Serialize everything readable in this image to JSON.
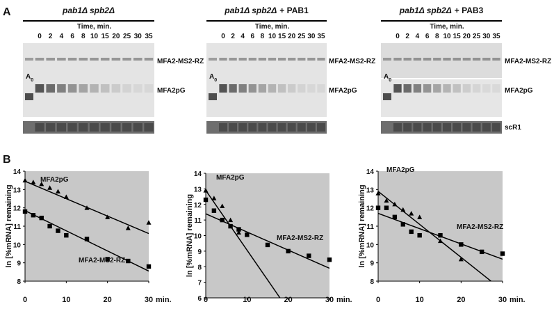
{
  "panel_a": {
    "label": "A",
    "gels": [
      {
        "strain": "pab1Δ spb2Δ",
        "time_label": "Time, min.",
        "times": [
          0,
          2,
          4,
          6,
          8,
          10,
          15,
          20,
          25,
          30,
          35
        ],
        "marker": "A",
        "marker_sub": "0",
        "bands": [
          "MFA2-MS2-RZ",
          "MFA2pG"
        ]
      },
      {
        "strain": "pab1Δ spb2Δ",
        "addition": "+ PAB1",
        "time_label": "Time, min.",
        "times": [
          0,
          2,
          4,
          6,
          8,
          10,
          15,
          20,
          25,
          30,
          35
        ],
        "marker": "A",
        "marker_sub": "0",
        "bands": [
          "MFA2-MS2-RZ",
          "MFA2pG"
        ]
      },
      {
        "strain": "pab1Δ spb2Δ",
        "addition": "+ PAB3",
        "time_label": "Time, min.",
        "times": [
          0,
          2,
          4,
          6,
          8,
          10,
          15,
          20,
          25,
          30,
          35
        ],
        "marker": "A",
        "marker_sub": "0",
        "bands": [
          "MFA2-MS2-RZ",
          "MFA2pG",
          "scR1"
        ]
      }
    ]
  },
  "panel_b": {
    "label": "B"
  },
  "chart_data": [
    {
      "type": "scatter",
      "ylabel": "ln [%mRNA] remaining",
      "xlabel": "min.",
      "xlim": [
        0,
        30
      ],
      "xticks": [
        0,
        10,
        20,
        30
      ],
      "ylim": [
        8,
        14
      ],
      "yticks": [
        8,
        9,
        10,
        11,
        12,
        13,
        14
      ],
      "background": "#c8c8c8",
      "series": [
        {
          "name": "MFA2pG",
          "color": "#000000",
          "marker": "triangle",
          "x": [
            0,
            2,
            4,
            6,
            8,
            10,
            15,
            20,
            25,
            30
          ],
          "values": [
            13.5,
            13.4,
            13.3,
            13.1,
            12.9,
            12.6,
            12.0,
            11.5,
            10.9,
            11.2
          ],
          "trend": {
            "x": [
              0,
              30
            ],
            "values": [
              13.45,
              10.6
            ]
          }
        },
        {
          "name": "MFA2-MS2-RZ",
          "color": "#000000",
          "marker": "square",
          "x": [
            0,
            2,
            4,
            6,
            8,
            10,
            15,
            20,
            25,
            30
          ],
          "values": [
            11.8,
            11.6,
            11.45,
            11.0,
            10.75,
            10.5,
            10.3,
            9.2,
            9.1,
            8.8
          ],
          "trend": {
            "x": [
              0,
              30
            ],
            "values": [
              11.85,
              8.55
            ]
          }
        }
      ]
    },
    {
      "type": "scatter",
      "ylabel": "ln [%mRNA] remaining",
      "xlabel": "min.",
      "xlim": [
        0,
        30
      ],
      "xticks": [
        0,
        10,
        20,
        30
      ],
      "ylim": [
        6,
        14
      ],
      "yticks": [
        6,
        7,
        8,
        9,
        10,
        11,
        12,
        13,
        14
      ],
      "background": "#c8c8c8",
      "series": [
        {
          "name": "MFA2pG",
          "color": "#000000",
          "marker": "triangle",
          "x": [
            0,
            2,
            4,
            6,
            8
          ],
          "values": [
            12.9,
            12.4,
            11.9,
            11.0,
            10.2
          ],
          "trend": {
            "x": [
              0,
              18
            ],
            "values": [
              12.9,
              6.0
            ]
          }
        },
        {
          "name": "MFA2-MS2-RZ",
          "color": "#000000",
          "marker": "square",
          "x": [
            0,
            2,
            4,
            6,
            8,
            10,
            15,
            20,
            25,
            30
          ],
          "values": [
            12.3,
            11.6,
            11.0,
            10.6,
            10.4,
            10.05,
            9.4,
            9.0,
            8.7,
            8.45
          ],
          "trend": {
            "x": [
              0,
              30
            ],
            "values": [
              11.4,
              7.9
            ]
          }
        }
      ]
    },
    {
      "type": "scatter",
      "ylabel": "ln [%mRNA] remaining",
      "xlabel": "min.",
      "xlim": [
        0,
        30
      ],
      "xticks": [
        0,
        10,
        20,
        30
      ],
      "ylim": [
        8,
        14
      ],
      "yticks": [
        8,
        9,
        10,
        11,
        12,
        13,
        14
      ],
      "background": "#c8c8c8",
      "series": [
        {
          "name": "MFA2pG",
          "color": "#000000",
          "marker": "triangle",
          "x": [
            0,
            2,
            4,
            6,
            8,
            10,
            15,
            20
          ],
          "values": [
            12.8,
            12.4,
            12.2,
            11.9,
            11.7,
            11.5,
            10.2,
            9.2
          ],
          "trend": {
            "x": [
              0,
              30
            ],
            "values": [
              12.9,
              7.5
            ]
          }
        },
        {
          "name": "MFA2-MS2-RZ",
          "color": "#000000",
          "marker": "square",
          "x": [
            0,
            2,
            4,
            6,
            8,
            10,
            15,
            20,
            25,
            30
          ],
          "values": [
            12.0,
            12.0,
            11.5,
            11.1,
            10.7,
            10.5,
            10.5,
            10.0,
            9.6,
            9.5
          ],
          "trend": {
            "x": [
              0,
              30
            ],
            "values": [
              11.7,
              9.2
            ]
          }
        }
      ]
    }
  ]
}
